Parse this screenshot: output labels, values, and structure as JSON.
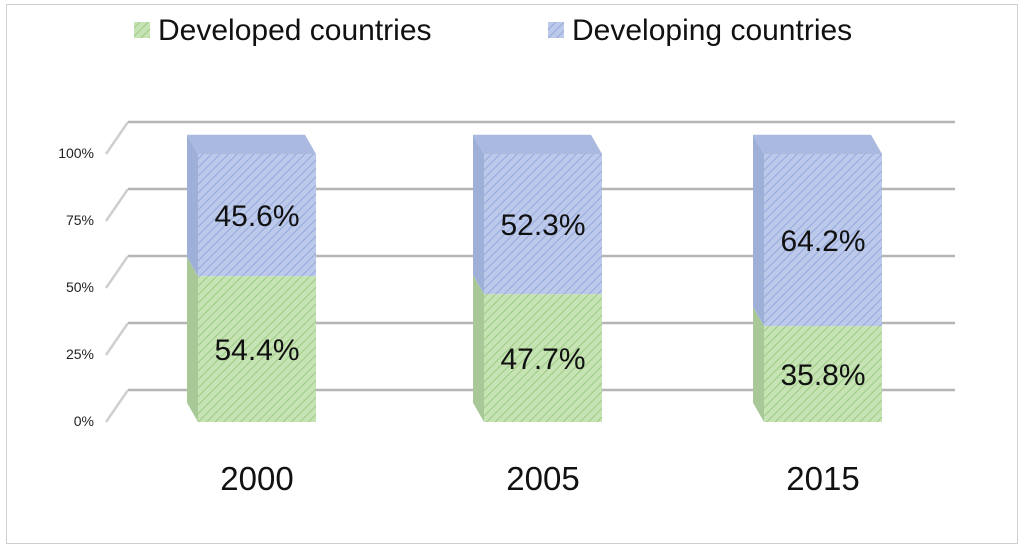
{
  "chart_data": {
    "type": "bar",
    "stacked": true,
    "three_d": true,
    "percent_stacked": true,
    "categories": [
      "2000",
      "2005",
      "2015"
    ],
    "series": [
      {
        "name": "Developed countries",
        "values": [
          54.4,
          47.7,
          35.8
        ],
        "labels": [
          "54.4%",
          "47.7%",
          "35.8%"
        ],
        "color": "#b9d9a6"
      },
      {
        "name": "Developing countries",
        "values": [
          45.6,
          52.3,
          64.2
        ],
        "labels": [
          "45.6%",
          "52.3%",
          "64.2%"
        ],
        "color": "#aebfe6"
      }
    ],
    "yticks": [
      "0%",
      "25%",
      "50%",
      "75%",
      "100%"
    ],
    "ylim": [
      0,
      100
    ],
    "legend_position": "top",
    "grid": true
  }
}
